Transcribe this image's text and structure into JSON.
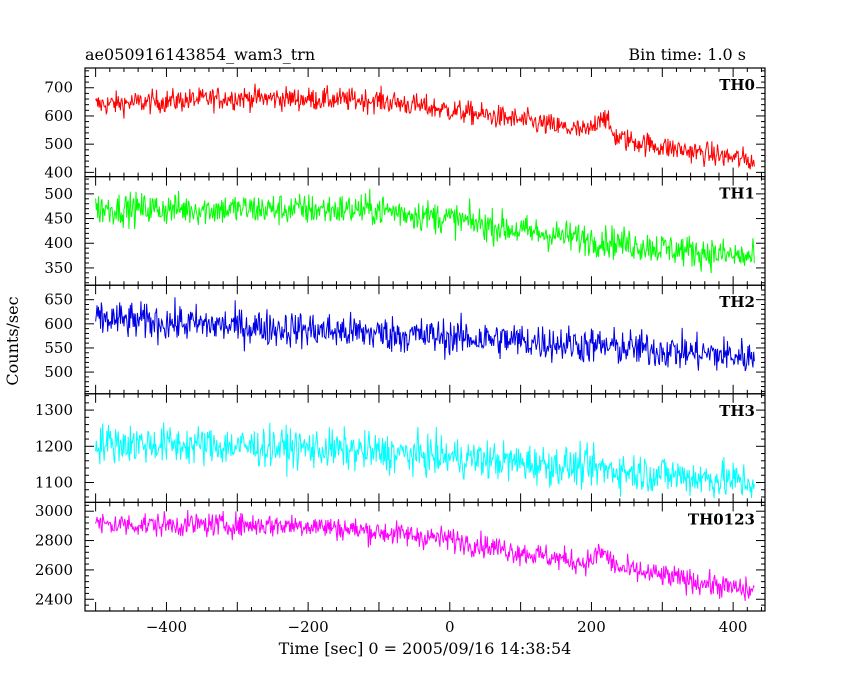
{
  "header": {
    "title": "ae050916143854_wam3_trn",
    "bin_time": "Bin time: 1.0 s"
  },
  "chart_data": {
    "type": "line",
    "xlabel": "Time [sec] 0 = 2005/09/16 14:38:54",
    "ylabel": "Counts/sec",
    "xlim": [
      -515,
      445
    ],
    "xticks": [
      -400,
      -200,
      0,
      200,
      400
    ],
    "x_range": [
      -500,
      430
    ],
    "bin_time_s": 1.0,
    "panels": [
      {
        "name": "TH0",
        "color": "#ff0000",
        "ylim": [
          385,
          770
        ],
        "yticks": [
          400,
          500,
          600,
          700
        ],
        "trend": [
          [
            -500,
            640
          ],
          [
            -300,
            665
          ],
          [
            -100,
            655
          ],
          [
            0,
            620
          ],
          [
            100,
            585
          ],
          [
            190,
            545
          ],
          [
            300,
            490
          ],
          [
            430,
            440
          ]
        ],
        "noise": 38,
        "peak": {
          "x": 215,
          "height": 70,
          "width": 12
        }
      },
      {
        "name": "TH1",
        "color": "#00ff00",
        "ylim": [
          315,
          535
        ],
        "yticks": [
          350,
          400,
          450,
          500
        ],
        "trend": [
          [
            -500,
            470
          ],
          [
            -100,
            468
          ],
          [
            0,
            450
          ],
          [
            100,
            425
          ],
          [
            300,
            390
          ],
          [
            430,
            370
          ]
        ],
        "noise": 30
      },
      {
        "name": "TH2",
        "color": "#0000e6",
        "ylim": [
          455,
          680
        ],
        "yticks": [
          500,
          550,
          600,
          650
        ],
        "trend": [
          [
            -500,
            610
          ],
          [
            -300,
            595
          ],
          [
            -100,
            580
          ],
          [
            100,
            565
          ],
          [
            300,
            545
          ],
          [
            430,
            530
          ]
        ],
        "noise": 35
      },
      {
        "name": "TH3",
        "color": "#00ffff",
        "ylim": [
          1045,
          1345
        ],
        "yticks": [
          1100,
          1200,
          1300
        ],
        "trend": [
          [
            -500,
            1210
          ],
          [
            -200,
            1195
          ],
          [
            0,
            1170
          ],
          [
            200,
            1140
          ],
          [
            430,
            1100
          ]
        ],
        "noise": 50
      },
      {
        "name": "TH0123",
        "color": "#ff00ff",
        "ylim": [
          2320,
          3060
        ],
        "yticks": [
          2400,
          2600,
          2800,
          3000
        ],
        "trend": [
          [
            -500,
            2910
          ],
          [
            -200,
            2905
          ],
          [
            0,
            2810
          ],
          [
            100,
            2720
          ],
          [
            200,
            2640
          ],
          [
            300,
            2560
          ],
          [
            430,
            2450
          ]
        ],
        "noise": 75,
        "peak": {
          "x": 215,
          "height": 90,
          "width": 14
        }
      }
    ]
  }
}
